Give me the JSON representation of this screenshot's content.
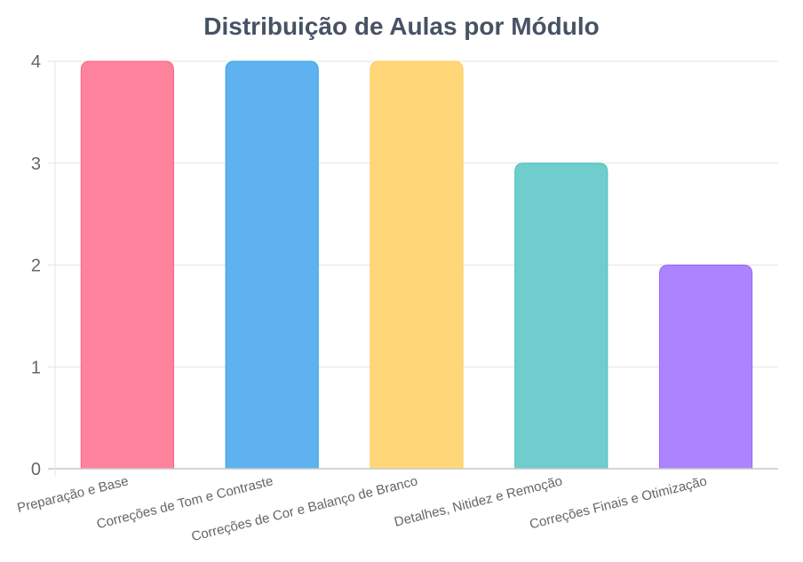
{
  "chart_data": {
    "type": "bar",
    "title": "Distribuição de Aulas por Módulo",
    "xlabel": "",
    "ylabel": "",
    "categories": [
      "Preparação e Base",
      "Correções de Tom e Contraste",
      "Correções de Cor e Balanço de Branco",
      "Detalhes, Nitidez e Remoção",
      "Correções Finais e Otimização"
    ],
    "values": [
      4,
      4,
      4,
      3,
      2
    ],
    "ylim": [
      0,
      4
    ],
    "yticks": [
      "0",
      "1",
      "2",
      "3",
      "4"
    ],
    "grid": true,
    "legend": "none",
    "colors": [
      "#ff829d",
      "#5eb2ef",
      "#ffd778",
      "#6fcdcd",
      "#ad84ff"
    ],
    "border_colors": [
      "#ff6384",
      "#36a2eb",
      "#ffcd56",
      "#4bc0c0",
      "#9966ff"
    ]
  }
}
